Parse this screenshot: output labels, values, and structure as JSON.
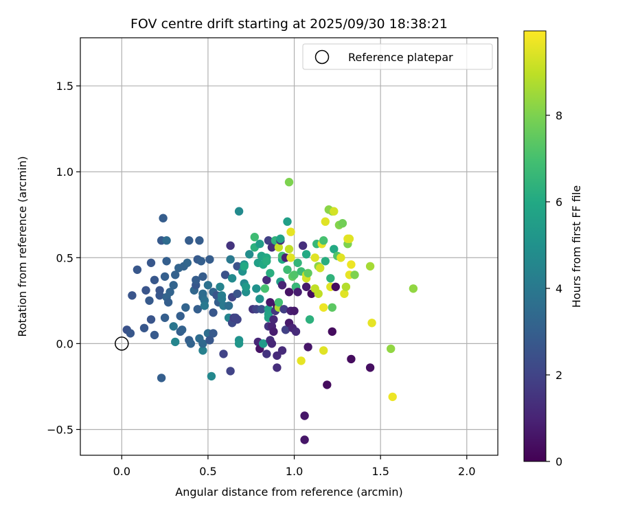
{
  "chart_data": {
    "type": "scatter",
    "title": "FOV centre drift starting at 2025/09/30 18:38:21",
    "xlabel": "Angular distance from reference (arcmin)",
    "ylabel": "Rotation from reference (arcmin)",
    "xlim": [
      -0.24,
      2.18
    ],
    "ylim": [
      -0.65,
      1.78
    ],
    "xticks": [
      0.0,
      0.5,
      1.0,
      1.5,
      2.0
    ],
    "xtick_labels": [
      "0.0",
      "0.5",
      "1.0",
      "1.5",
      "2.0"
    ],
    "yticks": [
      -0.5,
      0.0,
      0.5,
      1.0,
      1.5
    ],
    "ytick_labels": [
      "−0.5",
      "0.0",
      "0.5",
      "1.0",
      "1.5"
    ],
    "grid": true,
    "colormap": "viridis",
    "colorbar": {
      "label": "Hours from first FF file",
      "range": [
        0,
        9.95
      ],
      "ticks": [
        0,
        2,
        4,
        6,
        8
      ],
      "tick_labels": [
        "0",
        "2",
        "4",
        "6",
        "8"
      ]
    },
    "legend": {
      "position": "top-right",
      "entries": [
        {
          "label": "Reference platepar",
          "marker": "open-circle"
        }
      ]
    },
    "reference_point": {
      "x": 0.0,
      "y": 0.0
    },
    "points": [
      [
        0.03,
        0.08,
        2.5
      ],
      [
        0.05,
        0.06,
        2.7
      ],
      [
        0.06,
        0.28,
        2.6
      ],
      [
        0.09,
        0.43,
        2.7
      ],
      [
        0.13,
        0.09,
        2.7
      ],
      [
        0.14,
        0.31,
        2.6
      ],
      [
        0.16,
        0.25,
        2.8
      ],
      [
        0.17,
        0.14,
        2.6
      ],
      [
        0.17,
        0.47,
        2.7
      ],
      [
        0.19,
        0.05,
        2.8
      ],
      [
        0.19,
        0.37,
        2.7
      ],
      [
        0.22,
        0.31,
        2.6
      ],
      [
        0.22,
        0.28,
        2.7
      ],
      [
        0.23,
        -0.2,
        3.0
      ],
      [
        0.23,
        0.6,
        2.8
      ],
      [
        0.24,
        0.73,
        2.9
      ],
      [
        0.25,
        0.15,
        3.0
      ],
      [
        0.25,
        0.39,
        3.0
      ],
      [
        0.26,
        0.48,
        3.0
      ],
      [
        0.26,
        0.6,
        3.5
      ],
      [
        0.26,
        0.27,
        3.2
      ],
      [
        0.27,
        0.24,
        3.0
      ],
      [
        0.28,
        0.3,
        3.2
      ],
      [
        0.3,
        0.34,
        3.2
      ],
      [
        0.3,
        0.1,
        3.9
      ],
      [
        0.31,
        0.01,
        4.5
      ],
      [
        0.31,
        0.4,
        3.1
      ],
      [
        0.33,
        0.44,
        3.2
      ],
      [
        0.34,
        0.07,
        3.0
      ],
      [
        0.34,
        0.16,
        3.0
      ],
      [
        0.35,
        0.08,
        3.1
      ],
      [
        0.36,
        0.45,
        3.2
      ],
      [
        0.37,
        0.21,
        3.2
      ],
      [
        0.38,
        0.47,
        3.3
      ],
      [
        0.39,
        0.02,
        3.0
      ],
      [
        0.39,
        0.6,
        2.9
      ],
      [
        0.4,
        0.0,
        3.2
      ],
      [
        0.42,
        0.31,
        3.3
      ],
      [
        0.43,
        0.34,
        2.7
      ],
      [
        0.43,
        0.37,
        2.9
      ],
      [
        0.44,
        0.2,
        3.0
      ],
      [
        0.44,
        0.49,
        2.8
      ],
      [
        0.45,
        0.6,
        2.9
      ],
      [
        0.45,
        0.03,
        3.5
      ],
      [
        0.46,
        0.48,
        3.0
      ],
      [
        0.47,
        0.39,
        2.9
      ],
      [
        0.47,
        -0.04,
        4.3
      ],
      [
        0.47,
        0.0,
        3.4
      ],
      [
        0.47,
        0.27,
        3.3
      ],
      [
        0.47,
        0.29,
        3.5
      ],
      [
        0.48,
        0.25,
        3.7
      ],
      [
        0.48,
        0.22,
        4.0
      ],
      [
        0.5,
        0.06,
        3.6
      ],
      [
        0.5,
        0.34,
        3.7
      ],
      [
        0.51,
        0.49,
        2.9
      ],
      [
        0.51,
        0.02,
        2.7
      ],
      [
        0.52,
        -0.19,
        4.6
      ],
      [
        0.53,
        0.06,
        2.8
      ],
      [
        0.53,
        0.3,
        3.2
      ],
      [
        0.53,
        0.18,
        2.7
      ],
      [
        0.55,
        0.28,
        2.6
      ],
      [
        0.56,
        0.24,
        3.0
      ],
      [
        0.57,
        0.33,
        4.4
      ],
      [
        0.58,
        0.28,
        4.2
      ],
      [
        0.58,
        0.26,
        4.1
      ],
      [
        0.59,
        0.22,
        4.0
      ],
      [
        0.59,
        -0.06,
        2.0
      ],
      [
        0.6,
        0.4,
        2.5
      ],
      [
        0.62,
        0.15,
        4.5
      ],
      [
        0.62,
        0.22,
        3.6
      ],
      [
        0.63,
        0.57,
        1.5
      ],
      [
        0.63,
        -0.16,
        2.0
      ],
      [
        0.63,
        0.49,
        4.0
      ],
      [
        0.64,
        0.27,
        2.0
      ],
      [
        0.64,
        0.12,
        2.2
      ],
      [
        0.64,
        0.38,
        4.7
      ],
      [
        0.65,
        0.15,
        1.8
      ],
      [
        0.66,
        0.15,
        2.1
      ],
      [
        0.67,
        0.29,
        2.6
      ],
      [
        0.67,
        0.14,
        2.0
      ],
      [
        0.67,
        0.45,
        2.5
      ],
      [
        0.68,
        0.02,
        5.0
      ],
      [
        0.68,
        0.0,
        5.2
      ],
      [
        0.68,
        0.77,
        4.7
      ],
      [
        0.7,
        0.42,
        5.0
      ],
      [
        0.71,
        0.46,
        5.0
      ],
      [
        0.71,
        0.45,
        6.0
      ],
      [
        0.71,
        0.35,
        4.7
      ],
      [
        0.72,
        0.3,
        4.9
      ],
      [
        0.72,
        0.33,
        5.3
      ],
      [
        0.74,
        0.52,
        4.8
      ],
      [
        0.76,
        0.2,
        1.5
      ],
      [
        0.77,
        0.62,
        6.8
      ],
      [
        0.77,
        0.56,
        6.3
      ],
      [
        0.78,
        0.32,
        5.0
      ],
      [
        0.78,
        0.2,
        2.0
      ],
      [
        0.79,
        0.01,
        1.1
      ],
      [
        0.79,
        0.47,
        5.6
      ],
      [
        0.8,
        0.26,
        5.0
      ],
      [
        0.8,
        0.58,
        5.5
      ],
      [
        0.8,
        -0.03,
        0.5
      ],
      [
        0.81,
        0.51,
        5.8
      ],
      [
        0.81,
        0.2,
        2.5
      ],
      [
        0.82,
        0.0,
        5.8
      ],
      [
        0.82,
        0.0,
        5.4
      ],
      [
        0.82,
        0.46,
        6.0
      ],
      [
        0.83,
        0.5,
        5.8
      ],
      [
        0.83,
        0.32,
        7.0
      ],
      [
        0.84,
        0.5,
        6.0
      ],
      [
        0.84,
        0.37,
        1.2
      ],
      [
        0.84,
        0.48,
        6.2
      ],
      [
        0.84,
        -0.06,
        1.5
      ],
      [
        0.85,
        0.2,
        5.6
      ],
      [
        0.85,
        0.1,
        1.5
      ],
      [
        0.85,
        0.6,
        1.9
      ],
      [
        0.85,
        0.17,
        5.7
      ],
      [
        0.85,
        0.15,
        5.8
      ],
      [
        0.86,
        0.24,
        0.6
      ],
      [
        0.86,
        0.41,
        6.2
      ],
      [
        0.86,
        0.02,
        1.3
      ],
      [
        0.87,
        0.56,
        1.3
      ],
      [
        0.87,
        0.1,
        1.0
      ],
      [
        0.87,
        0.0,
        1.1
      ],
      [
        0.88,
        0.14,
        1.1
      ],
      [
        0.88,
        0.07,
        0.8
      ],
      [
        0.89,
        0.6,
        6.4
      ],
      [
        0.89,
        0.19,
        1.6
      ],
      [
        0.9,
        0.22,
        0.4
      ],
      [
        0.9,
        -0.07,
        1.2
      ],
      [
        0.9,
        -0.14,
        1.3
      ],
      [
        0.91,
        0.56,
        9.1
      ],
      [
        0.91,
        0.21,
        8.7
      ],
      [
        0.91,
        0.24,
        6.9
      ],
      [
        0.92,
        0.6,
        1.3
      ],
      [
        0.92,
        0.61,
        5.7
      ],
      [
        0.92,
        0.36,
        5.6
      ],
      [
        0.93,
        0.49,
        6.0
      ],
      [
        0.93,
        0.51,
        6.8
      ],
      [
        0.93,
        0.34,
        1.0
      ],
      [
        0.93,
        -0.04,
        1.2
      ],
      [
        0.94,
        0.2,
        1.8
      ],
      [
        0.95,
        0.08,
        1.9
      ],
      [
        0.95,
        0.5,
        0.9
      ],
      [
        0.96,
        0.71,
        5.6
      ],
      [
        0.96,
        0.43,
        6.8
      ],
      [
        0.97,
        0.94,
        8.0
      ],
      [
        0.97,
        0.12,
        0.7
      ],
      [
        0.97,
        0.55,
        9.0
      ],
      [
        0.97,
        0.3,
        0.5
      ],
      [
        0.98,
        0.5,
        9.5
      ],
      [
        0.98,
        0.65,
        9.6
      ],
      [
        0.98,
        0.19,
        0.9
      ],
      [
        0.99,
        0.39,
        7.5
      ],
      [
        0.99,
        0.09,
        1.0
      ],
      [
        1.0,
        0.19,
        0.7
      ],
      [
        1.0,
        0.4,
        7.2
      ],
      [
        1.01,
        0.33,
        1.2
      ],
      [
        1.01,
        0.07,
        1.2
      ],
      [
        1.01,
        0.33,
        6.6
      ],
      [
        1.02,
        0.47,
        6.5
      ],
      [
        1.02,
        0.3,
        0.8
      ],
      [
        1.04,
        -0.1,
        9.6
      ],
      [
        1.04,
        0.42,
        6.8
      ],
      [
        1.05,
        0.57,
        1.3
      ],
      [
        1.06,
        -0.42,
        0.6
      ],
      [
        1.06,
        -0.56,
        0.6
      ],
      [
        1.07,
        0.33,
        0.7
      ],
      [
        1.07,
        0.4,
        9.2
      ],
      [
        1.07,
        0.52,
        6.0
      ],
      [
        1.07,
        0.38,
        9.3
      ],
      [
        1.08,
        -0.02,
        0.6
      ],
      [
        1.08,
        0.41,
        7.5
      ],
      [
        1.09,
        0.14,
        6.3
      ],
      [
        1.1,
        0.29,
        0.3
      ],
      [
        1.12,
        0.32,
        9.0
      ],
      [
        1.12,
        0.5,
        9.5
      ],
      [
        1.13,
        0.58,
        6.6
      ],
      [
        1.14,
        0.29,
        9.0
      ],
      [
        1.14,
        0.45,
        8.2
      ],
      [
        1.15,
        0.44,
        9.3
      ],
      [
        1.16,
        0.58,
        9.6
      ],
      [
        1.17,
        0.6,
        7.0
      ],
      [
        1.17,
        -0.04,
        9.5
      ],
      [
        1.17,
        0.21,
        9.7
      ],
      [
        1.18,
        0.71,
        9.5
      ],
      [
        1.18,
        0.48,
        6.2
      ],
      [
        1.19,
        -0.24,
        0.3
      ],
      [
        1.2,
        0.78,
        8.2
      ],
      [
        1.21,
        0.38,
        6.4
      ],
      [
        1.21,
        0.33,
        9.5
      ],
      [
        1.22,
        0.21,
        7.4
      ],
      [
        1.22,
        0.07,
        0.3
      ],
      [
        1.22,
        0.77,
        8.2
      ],
      [
        1.23,
        0.55,
        6.0
      ],
      [
        1.23,
        0.77,
        9.3
      ],
      [
        1.24,
        0.33,
        0.3
      ],
      [
        1.25,
        0.51,
        7.2
      ],
      [
        1.26,
        0.69,
        8.1
      ],
      [
        1.27,
        0.5,
        9.5
      ],
      [
        1.28,
        0.7,
        7.8
      ],
      [
        1.29,
        0.29,
        9.5
      ],
      [
        1.3,
        0.33,
        8.8
      ],
      [
        1.31,
        0.58,
        8.0
      ],
      [
        1.31,
        0.61,
        9.6
      ],
      [
        1.32,
        0.61,
        9.5
      ],
      [
        1.32,
        0.4,
        9.6
      ],
      [
        1.33,
        0.46,
        9.7
      ],
      [
        1.33,
        -0.09,
        0.3
      ],
      [
        1.35,
        0.4,
        8.0
      ],
      [
        1.44,
        0.45,
        8.6
      ],
      [
        1.44,
        -0.14,
        0.4
      ],
      [
        1.45,
        0.12,
        9.6
      ],
      [
        1.56,
        -0.03,
        8.3
      ],
      [
        1.57,
        -0.31,
        9.7
      ],
      [
        1.69,
        0.32,
        8.3
      ]
    ]
  }
}
